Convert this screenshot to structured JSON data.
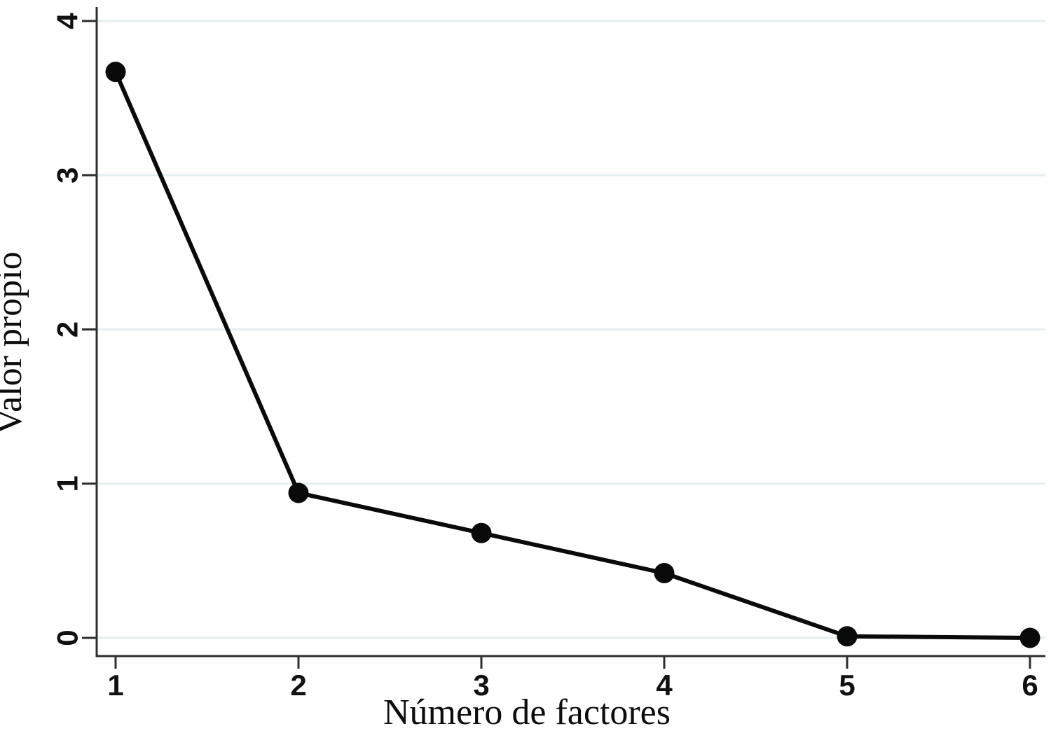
{
  "figure": {
    "background": "#ffffff"
  },
  "chart_data": {
    "type": "line",
    "title": "",
    "xlabel": "Número de factores",
    "ylabel": "Valor propio",
    "x": [
      1,
      2,
      3,
      4,
      5,
      6
    ],
    "series": [
      {
        "name": "Valor propio",
        "values": [
          3.67,
          0.94,
          0.68,
          0.42,
          0.01,
          0.0
        ]
      }
    ],
    "xticks": [
      "1",
      "2",
      "3",
      "4",
      "5",
      "6"
    ],
    "yticks": [
      "0",
      "1",
      "2",
      "3",
      "4"
    ],
    "xlim": [
      1,
      6
    ],
    "ylim": [
      0,
      4
    ],
    "grid": "horizontal-only",
    "legend_position": "none",
    "colors": {
      "line": "#0a0a0a",
      "marker": "#0a0a0a",
      "axis": "#2e2e2e",
      "gridline": "#e6eef0",
      "tick_label": "#111111",
      "axis_title": "#0d0d0d",
      "background": "#ffffff"
    }
  }
}
